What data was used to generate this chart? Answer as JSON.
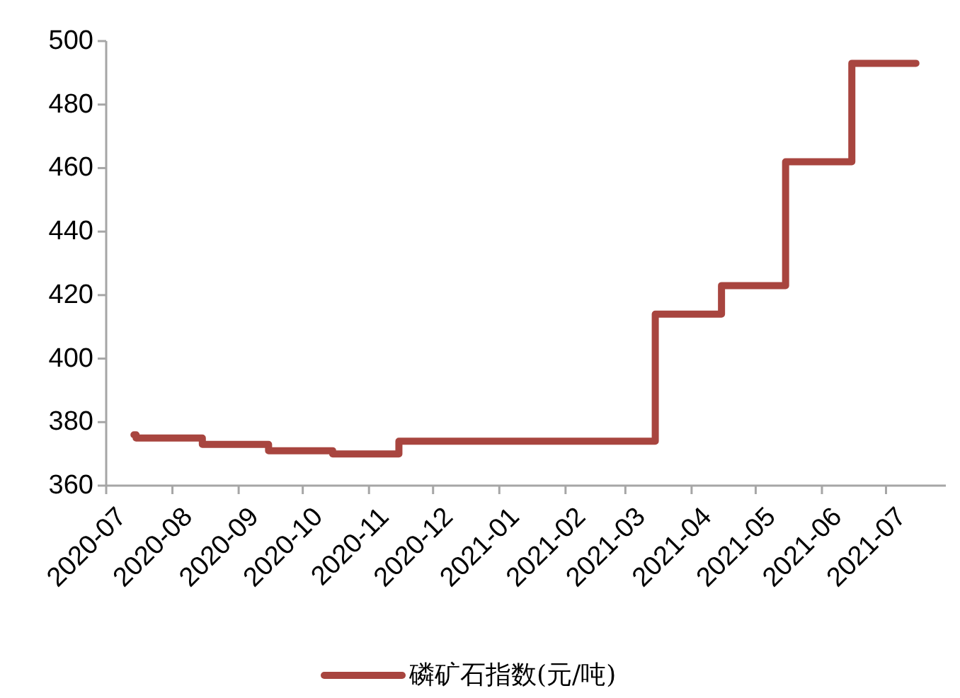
{
  "chart_data": {
    "type": "step",
    "x": [
      "2020-07-14",
      "2020-07-15",
      "2020-08-15",
      "2020-09-15",
      "2020-10-15",
      "2020-11-15",
      "2021-03-15",
      "2021-04-15",
      "2021-05-15",
      "2021-06-15",
      "2021-07-15"
    ],
    "series": [
      {
        "name": "磷矿石指数(元/吨)",
        "color": "#a8453f",
        "values": [
          376,
          375,
          373,
          371,
          370,
          374,
          414,
          423,
          462,
          493,
          493
        ]
      }
    ],
    "xlim": [
      "2020-07-01",
      "2021-07-29"
    ],
    "xticks": [
      "2020-07",
      "2020-08",
      "2020-09",
      "2020-10",
      "2020-11",
      "2020-12",
      "2021-01",
      "2021-02",
      "2021-03",
      "2021-04",
      "2021-05",
      "2021-06",
      "2021-07"
    ],
    "ylim": [
      360,
      500
    ],
    "yticks": [
      360,
      380,
      400,
      420,
      440,
      460,
      480,
      500
    ],
    "grid": false,
    "legend": "bottom",
    "line_style": "solid",
    "marker": "none"
  }
}
